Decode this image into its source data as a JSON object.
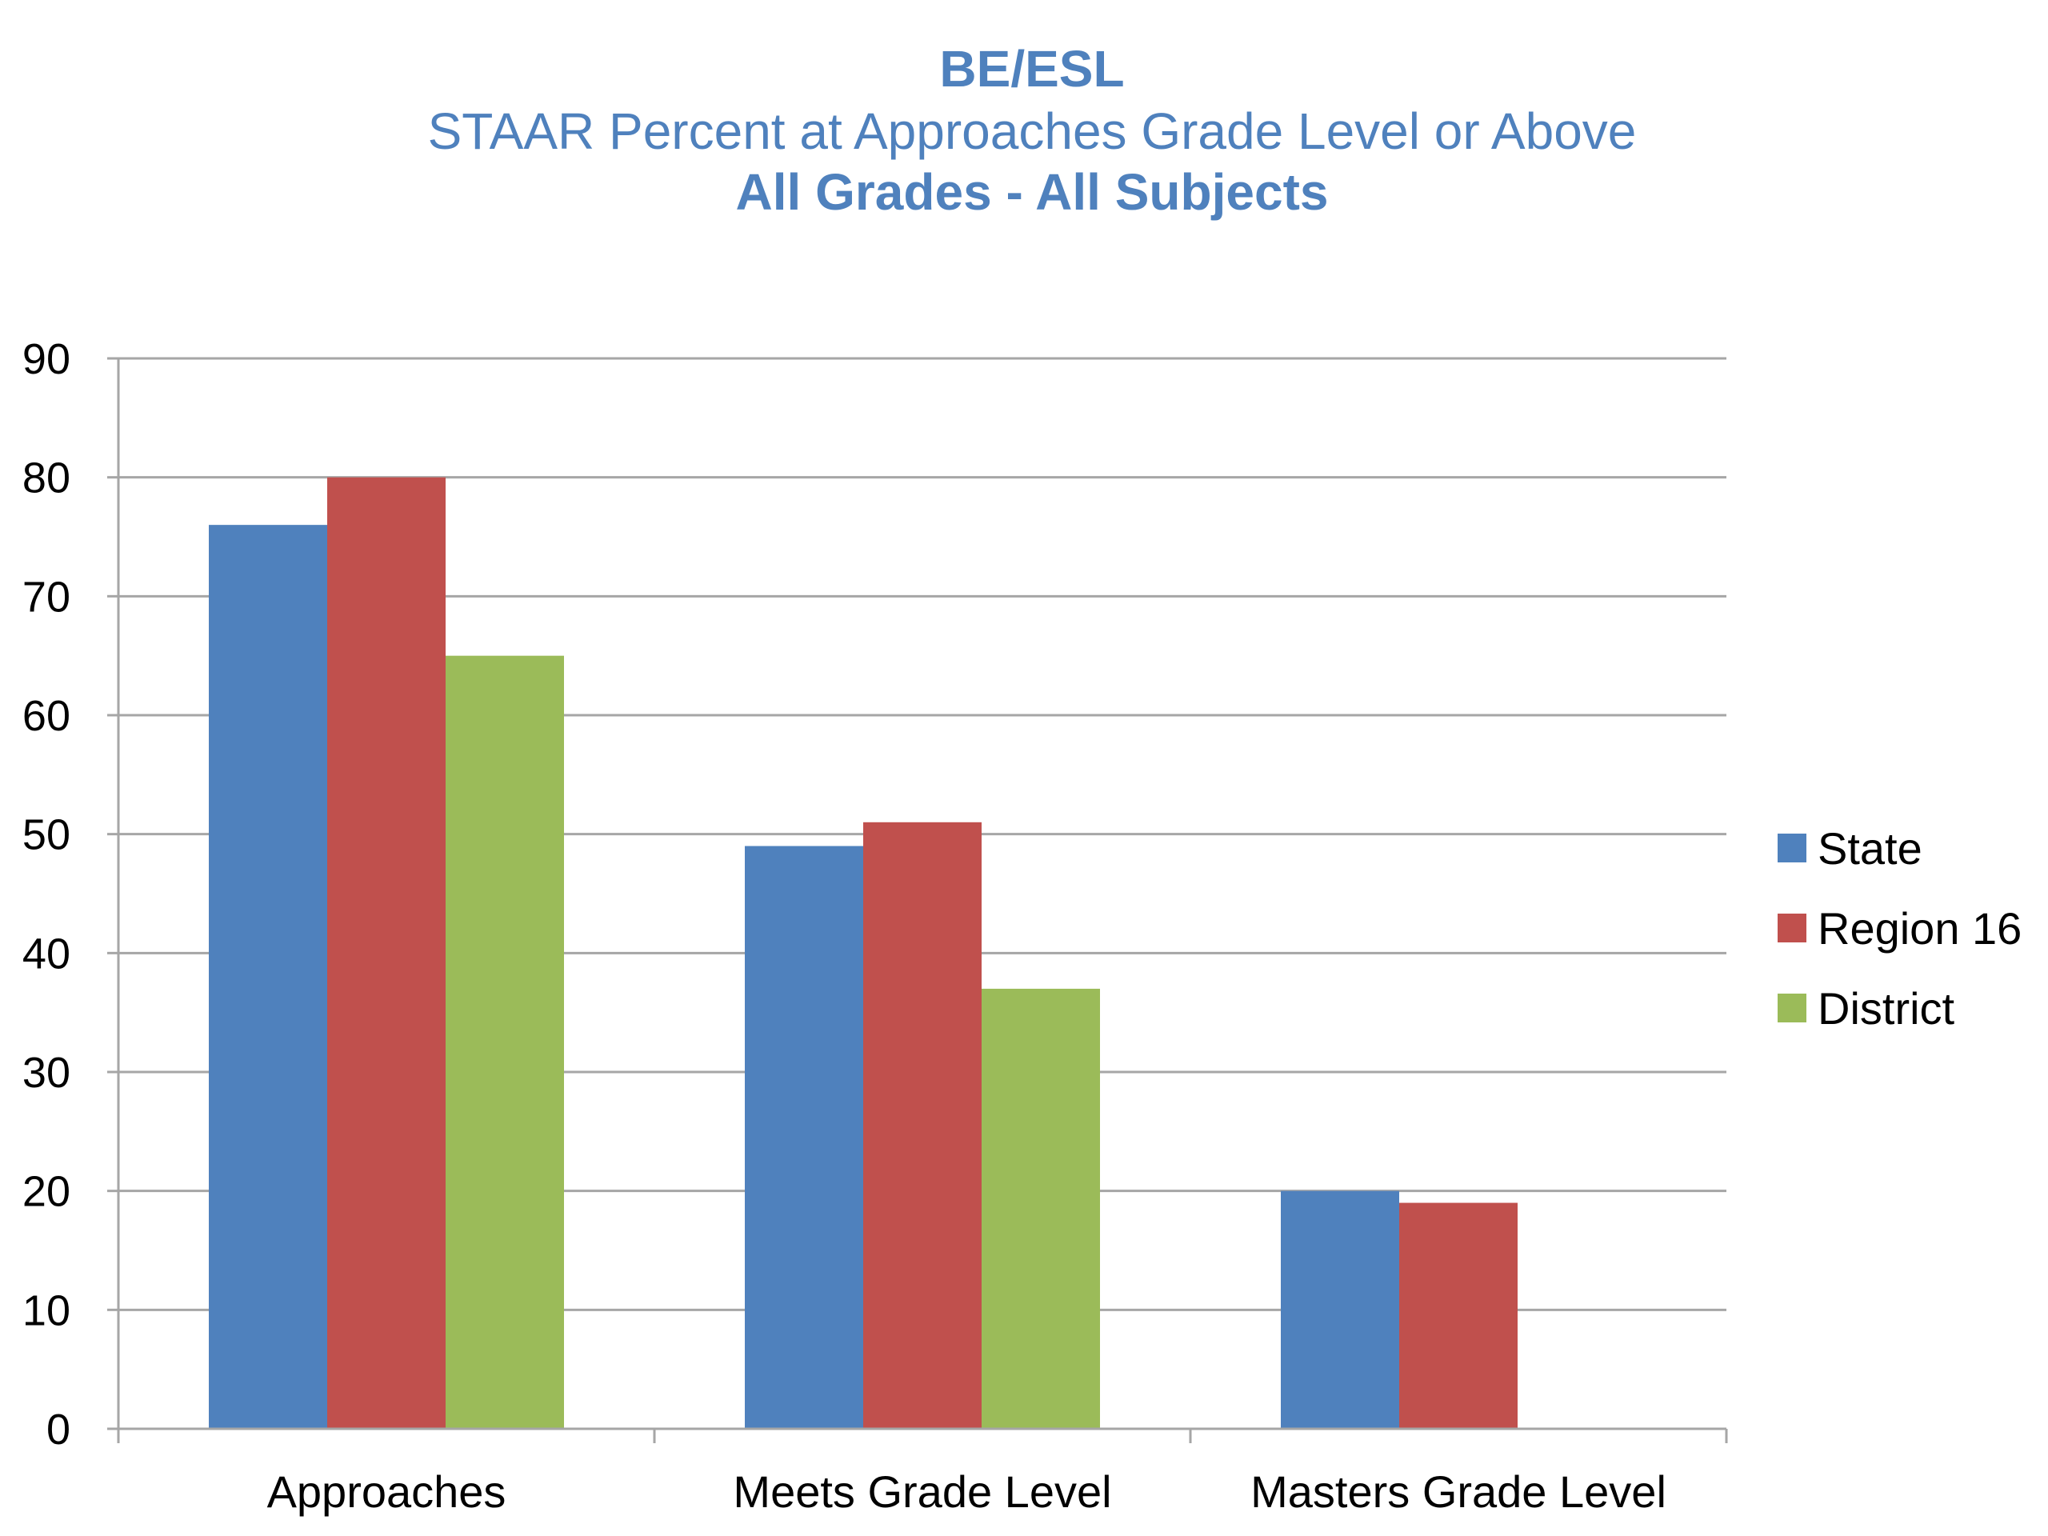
{
  "chart_data": {
    "type": "bar",
    "title": "BE/ESL",
    "subtitle": "STAAR Percent at Approaches Grade Level or Above",
    "subtitle2": "All Grades - All Subjects",
    "xlabel": "",
    "ylabel": "",
    "categories": [
      "Approaches",
      "Meets Grade Level",
      "Masters Grade Level"
    ],
    "series": [
      {
        "name": "State",
        "color": "#4F81BD",
        "values": [
          76,
          49,
          20
        ]
      },
      {
        "name": "Region 16",
        "color": "#C0504D",
        "values": [
          80,
          51,
          19
        ]
      },
      {
        "name": "District",
        "color": "#9BBB59",
        "values": [
          65,
          37,
          0
        ]
      }
    ],
    "ylim": [
      0,
      90
    ],
    "yticks": [
      0,
      10,
      20,
      30,
      40,
      50,
      60,
      70,
      80,
      90
    ],
    "grid": true,
    "legend": "right",
    "title_color": "#4F81BD"
  }
}
